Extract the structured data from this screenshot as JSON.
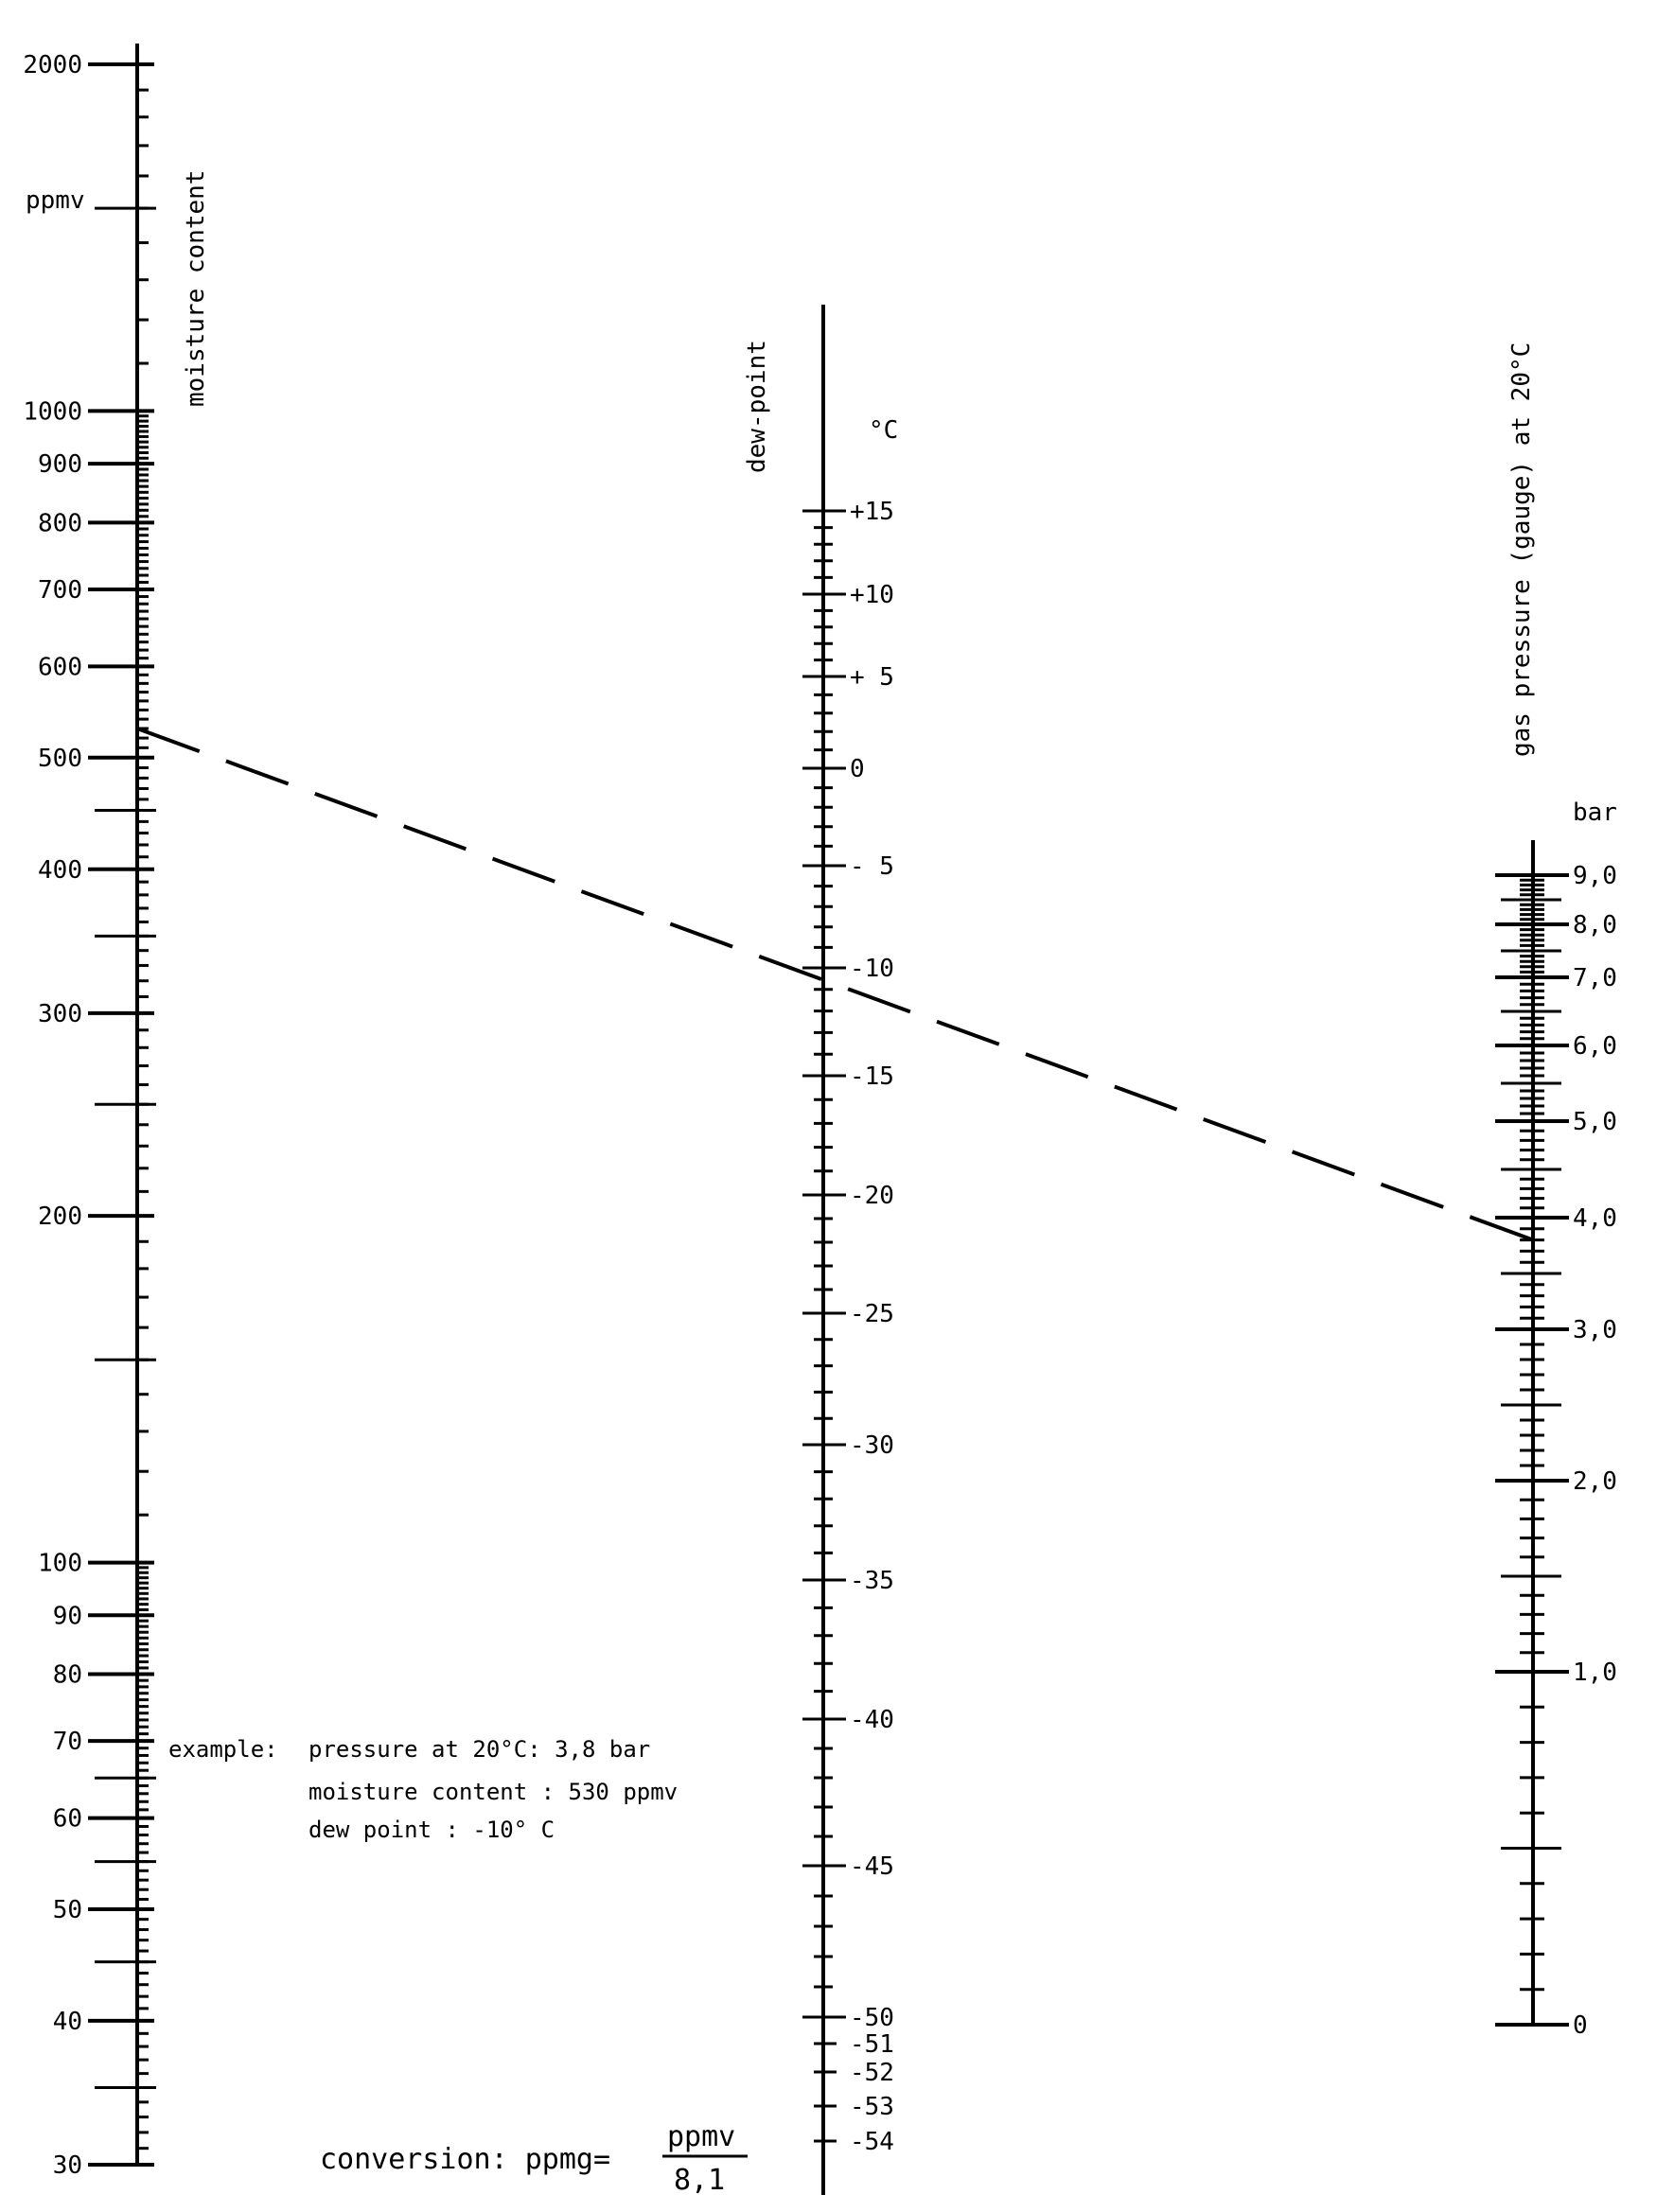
{
  "chart_data": {
    "type": "nomogram",
    "axes": {
      "moisture": {
        "title": "moisture content",
        "unit": "ppmv",
        "scale": "log",
        "range": [
          30,
          2000
        ],
        "major_ticks": [
          "30",
          "40",
          "50",
          "60",
          "70",
          "80",
          "90",
          "100",
          "200",
          "300",
          "400",
          "500",
          "600",
          "700",
          "800",
          "900",
          "1000",
          "2000"
        ]
      },
      "dewpoint": {
        "title": "dew-point",
        "unit": "°C",
        "range": [
          -54,
          15
        ],
        "major_ticks": [
          "+15",
          "+10",
          "+ 5",
          "0",
          "- 5",
          "-10",
          "-15",
          "-20",
          "-25",
          "-30",
          "-35",
          "-40",
          "-45",
          "-50",
          "-51",
          "-52",
          "-53",
          "-54"
        ]
      },
      "pressure": {
        "title": "gas pressure (gauge) at 20°C",
        "unit": "bar",
        "range": [
          0,
          9
        ],
        "major_ticks": [
          "0",
          "1,0",
          "2,0",
          "3,0",
          "4,0",
          "5,0",
          "6,0",
          "7,0",
          "8,0",
          "9,0"
        ]
      }
    },
    "example_line": {
      "moisture_ppmv": 530,
      "dewpoint_c": -10,
      "pressure_bar": 3.8
    },
    "example_text": {
      "label": "example:",
      "line1": "pressure at 20°C: 3,8 bar",
      "line2": "moisture content  : 530 ppmv",
      "line3": "dew point         : -10° C"
    },
    "conversion": {
      "label": "conversion: ppmg=",
      "numerator": "ppmv",
      "denominator": "8,1"
    }
  }
}
